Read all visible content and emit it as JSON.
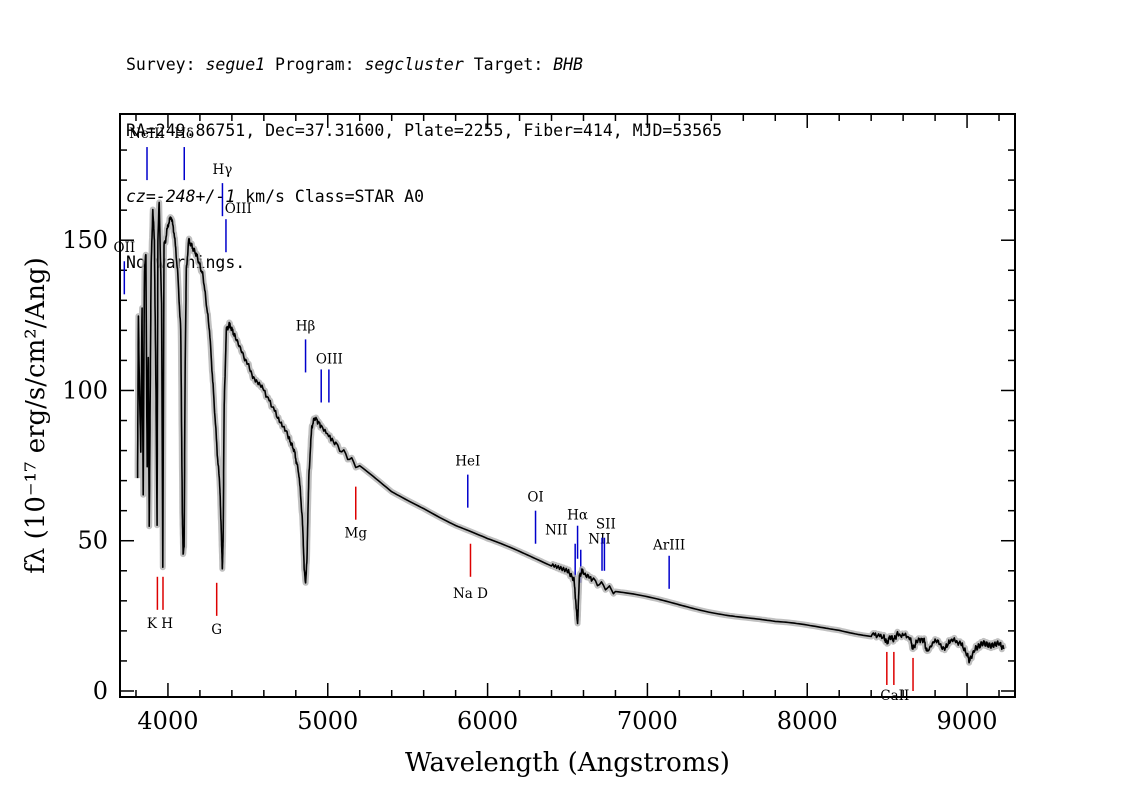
{
  "header": {
    "line1": {
      "survey_label": "Survey: ",
      "survey": "segue1",
      "program_label": " Program: ",
      "program": "segcluster",
      "target_label": " Target: ",
      "target": "BHB"
    },
    "line2": "RA=249.86751, Dec=37.31600, Plate=2255, Fiber=414, MJD=53565",
    "line3": {
      "cz_label": "cz=",
      "cz": "-248+/-1",
      "rest": " km/s Class=STAR A0"
    },
    "line4": "No warnings."
  },
  "chart_data": {
    "type": "line",
    "xlabel": "Wavelength (Angstroms)",
    "ylabel": "fλ (10⁻¹⁷ erg/s/cm²/Ang)",
    "xlim": [
      3700,
      9300
    ],
    "ylim": [
      -2,
      192
    ],
    "x_ticks": [
      4000,
      5000,
      6000,
      7000,
      8000,
      9000
    ],
    "y_ticks": [
      0,
      50,
      100,
      150
    ],
    "series": [
      {
        "color": "#000000",
        "error_color": "#b0b0b0",
        "x": [
          3810,
          3815,
          3822,
          3830,
          3838,
          3845,
          3853,
          3862,
          3870,
          3877,
          3883,
          3889,
          3895,
          3905,
          3915,
          3925,
          3932,
          3937,
          3945,
          3960,
          3968,
          3975,
          3985,
          4000,
          4020,
          4040,
          4060,
          4080,
          4090,
          4095,
          4101,
          4108,
          4115,
          4130,
          4150,
          4180,
          4220,
          4260,
          4290,
          4310,
          4325,
          4335,
          4340,
          4345,
          4352,
          4365,
          4385,
          4420,
          4470,
          4530,
          4600,
          4680,
          4750,
          4790,
          4820,
          4840,
          4852,
          4861,
          4870,
          4882,
          4900,
          4920,
          4960,
          5050,
          5200,
          5400,
          5600,
          5800,
          6000,
          6200,
          6400,
          6500,
          6540,
          6552,
          6558,
          6563,
          6568,
          6575,
          6590,
          6650,
          6800,
          7000,
          7200,
          7400,
          7600,
          7800,
          8000,
          8200,
          8400,
          8480,
          8498,
          8520,
          8542,
          8565,
          8640,
          8662,
          8690,
          8730,
          8750,
          8800,
          8860,
          8900,
          8960,
          9000,
          9015,
          9050,
          9100,
          9150,
          9200,
          9230
        ],
        "y": [
          70,
          125,
          100,
          80,
          127,
          65,
          140,
          145,
          75,
          110,
          55,
          98,
          142,
          160,
          150,
          100,
          55,
          150,
          162,
          128,
          42,
          148,
          150,
          155,
          158,
          152,
          140,
          120,
          60,
          45,
          48,
          110,
          140,
          150,
          148,
          145,
          138,
          120,
          95,
          78,
          68,
          50,
          41,
          50,
          95,
          120,
          122,
          118,
          112,
          105,
          100,
          92,
          85,
          80,
          72,
          58,
          42,
          35,
          45,
          72,
          88,
          91,
          88,
          82,
          74,
          66,
          61,
          55,
          50,
          46,
          42,
          40,
          37,
          30,
          25,
          22,
          30,
          38,
          40,
          37,
          33,
          31,
          29,
          27,
          25,
          23,
          22,
          21,
          19,
          18,
          16,
          18,
          17,
          19,
          18,
          14,
          17,
          17,
          13,
          17,
          14,
          17,
          16,
          12,
          10,
          14,
          16,
          15,
          16,
          14
        ]
      }
    ],
    "lines": [
      {
        "label": "OII",
        "x": 3727,
        "color": "blue",
        "y0": 132,
        "y1": 143,
        "lx": 3727,
        "ly": 146
      },
      {
        "label": "NeIII",
        "x": 3869,
        "color": "blue",
        "y0": 170,
        "y1": 181,
        "lx": 3869,
        "ly": 184
      },
      {
        "label": "Hδ",
        "x": 4102,
        "color": "blue",
        "y0": 170,
        "y1": 181,
        "lx": 4102,
        "ly": 184
      },
      {
        "label": "Hγ",
        "x": 4341,
        "color": "blue",
        "y0": 158,
        "y1": 169,
        "lx": 4341,
        "ly": 172
      },
      {
        "label": "OIII",
        "x": 4363,
        "color": "blue",
        "y0": 146,
        "y1": 157,
        "lx": 4440,
        "ly": 159
      },
      {
        "label": "Hβ",
        "x": 4861,
        "color": "blue",
        "y0": 106,
        "y1": 117,
        "lx": 4861,
        "ly": 120
      },
      {
        "label": "OIII",
        "x": 4959,
        "color": "blue",
        "y0": 96,
        "y1": 107,
        "lx": 5010,
        "ly": 109
      },
      {
        "label": "OIII",
        "x": 5007,
        "color": "blue",
        "y0": 96,
        "y1": 107,
        "lx": null,
        "ly": null
      },
      {
        "label": "Mg",
        "x": 5175,
        "color": "red",
        "y0": 57,
        "y1": 68,
        "lx": 5175,
        "ly": 51
      },
      {
        "label": "HeI",
        "x": 5876,
        "color": "blue",
        "y0": 61,
        "y1": 72,
        "lx": 5876,
        "ly": 75
      },
      {
        "label": "Na D",
        "x": 5893,
        "color": "red",
        "y0": 38,
        "y1": 49,
        "lx": 5893,
        "ly": 31
      },
      {
        "label": "OI",
        "x": 6300,
        "color": "blue",
        "y0": 49,
        "y1": 60,
        "lx": 6300,
        "ly": 63
      },
      {
        "label": "NII",
        "x": 6548,
        "color": "blue",
        "y0": 38,
        "y1": 49,
        "lx": 6430,
        "ly": 52
      },
      {
        "label": "Hα",
        "x": 6563,
        "color": "blue",
        "y0": 44,
        "y1": 55,
        "lx": 6563,
        "ly": 57
      },
      {
        "label": "NII",
        "x": 6583,
        "color": "blue",
        "y0": 36,
        "y1": 47,
        "lx": 6700,
        "ly": 49
      },
      {
        "label": "SII",
        "x": 6716,
        "color": "blue",
        "y0": 40,
        "y1": 51,
        "lx": 6740,
        "ly": 54
      },
      {
        "label": "SII",
        "x": 6731,
        "color": "blue",
        "y0": 40,
        "y1": 51,
        "lx": null,
        "ly": null
      },
      {
        "label": "ArIII",
        "x": 7136,
        "color": "blue",
        "y0": 34,
        "y1": 45,
        "lx": 7136,
        "ly": 47
      },
      {
        "label": "K H",
        "x": 3934,
        "color": "red",
        "y0": 27,
        "y1": 38,
        "lx": 3950,
        "ly": 21
      },
      {
        "label": "K H",
        "x": 3969,
        "color": "red",
        "y0": 27,
        "y1": 38,
        "lx": null,
        "ly": null
      },
      {
        "label": "G",
        "x": 4305,
        "color": "red",
        "y0": 25,
        "y1": 36,
        "lx": 4305,
        "ly": 19
      },
      {
        "label": "CaII",
        "x": 8498,
        "color": "red",
        "y0": 2,
        "y1": 13,
        "lx": 8548,
        "ly": -3
      },
      {
        "label": "CaII",
        "x": 8542,
        "color": "red",
        "y0": 2,
        "y1": 13,
        "lx": null,
        "ly": null
      },
      {
        "label": "CaII",
        "x": 8662,
        "color": "red",
        "y0": 0,
        "y1": 11,
        "lx": null,
        "ly": null
      }
    ],
    "colors": {
      "blue": "#0000cc",
      "red": "#dd0000"
    },
    "grid": false,
    "legend": "none"
  }
}
